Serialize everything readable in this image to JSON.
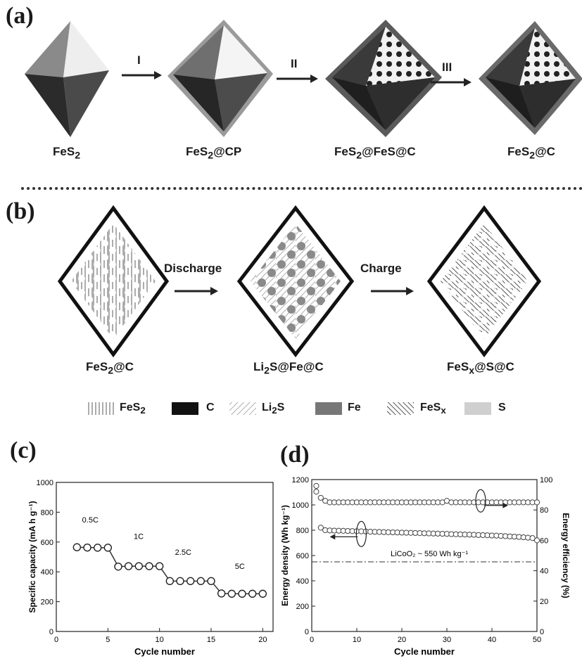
{
  "panel_a": {
    "letter": "(a)",
    "steps": [
      {
        "label": "FeS",
        "sub": "2",
        "suffix": ""
      },
      {
        "label": "FeS",
        "sub": "2",
        "suffix": "@CP"
      },
      {
        "label": "FeS",
        "sub": "2",
        "suffix": "@FeS@C"
      },
      {
        "label": "FeS",
        "sub": "2",
        "suffix": "@C"
      }
    ],
    "arrows": [
      "I",
      "II",
      "III"
    ]
  },
  "panel_b": {
    "letter": "(b)",
    "states": [
      {
        "label": "FeS",
        "sub": "2",
        "suffix": "@C"
      },
      {
        "label": "Li",
        "sub": "2",
        "suffix": "S@Fe@C"
      },
      {
        "label": "FeS",
        "sub": "x",
        "suffix": "@S@C"
      }
    ],
    "arrows": [
      "Discharge",
      "Charge"
    ],
    "legend": [
      {
        "label": "FeS",
        "sub": "2",
        "pattern": "vertical"
      },
      {
        "label": "C",
        "sub": "",
        "pattern": "black"
      },
      {
        "label": "Li",
        "sub": "2",
        "suffix": "S",
        "pattern": "diagonal-light"
      },
      {
        "label": "Fe",
        "sub": "",
        "pattern": "gray"
      },
      {
        "label": "FeS",
        "sub": "x",
        "pattern": "diagonal-dark"
      },
      {
        "label": "S",
        "sub": "",
        "pattern": "light-gray"
      }
    ]
  },
  "chart_data": [
    {
      "panel": "(c)",
      "type": "line",
      "xlabel": "Cycle number",
      "ylabel": "Specific capacity (mA h g⁻¹)",
      "xlim": [
        0,
        21
      ],
      "ylim": [
        0,
        1000
      ],
      "xticks": [
        0,
        5,
        10,
        15,
        20
      ],
      "yticks": [
        0,
        200,
        400,
        600,
        800,
        1000
      ],
      "x": [
        2,
        3,
        4,
        5,
        6,
        7,
        8,
        9,
        10,
        11,
        12,
        13,
        14,
        15,
        16,
        17,
        18,
        19,
        20
      ],
      "series": [
        {
          "values": [
            565,
            563,
            562,
            562,
            435,
            438,
            438,
            438,
            438,
            338,
            338,
            338,
            338,
            338,
            255,
            253,
            253,
            253,
            253
          ]
        }
      ],
      "annotations": [
        "0.5C",
        "1C",
        "2.5C",
        "5C"
      ]
    },
    {
      "panel": "(d)",
      "type": "line",
      "xlabel": "Cycle number",
      "ylabel": "Energy density (Wh kg⁻¹)",
      "ylabel_right": "Energy efficiency (%)",
      "xlim": [
        0,
        50
      ],
      "ylim": [
        0,
        1200
      ],
      "ylim_right": [
        0,
        100
      ],
      "xticks": [
        0,
        10,
        20,
        30,
        40,
        50
      ],
      "yticks": [
        0,
        200,
        400,
        600,
        800,
        1000,
        1200
      ],
      "yticks_right": [
        0,
        20,
        40,
        60,
        80,
        100
      ],
      "x": [
        1,
        2,
        3,
        4,
        5,
        6,
        7,
        8,
        9,
        10,
        11,
        12,
        13,
        14,
        15,
        16,
        17,
        18,
        19,
        20,
        21,
        22,
        23,
        24,
        25,
        26,
        27,
        28,
        29,
        30,
        31,
        32,
        33,
        34,
        35,
        36,
        37,
        38,
        39,
        40,
        41,
        42,
        43,
        44,
        45,
        46,
        47,
        48,
        49,
        50
      ],
      "series": [
        {
          "axis": "left",
          "values": [
            1150,
            820,
            800,
            798,
            797,
            796,
            795,
            794,
            793,
            792,
            791,
            790,
            788,
            787,
            786,
            785,
            784,
            783,
            782,
            781,
            780,
            779,
            778,
            777,
            776,
            775,
            774,
            773,
            772,
            771,
            769,
            768,
            767,
            766,
            765,
            764,
            762,
            761,
            760,
            758,
            757,
            755,
            753,
            751,
            749,
            747,
            744,
            741,
            738,
            720
          ]
        },
        {
          "axis": "right",
          "values": [
            92,
            88,
            86,
            85,
            85,
            85,
            85,
            85,
            85,
            85,
            85,
            85,
            85,
            85,
            85,
            85,
            85,
            85,
            85,
            85,
            85,
            85,
            85,
            85,
            85,
            85,
            85,
            85,
            85,
            86,
            85,
            85,
            85,
            85,
            85,
            85,
            85,
            85,
            85,
            85,
            85,
            85,
            85,
            85,
            85,
            85,
            85,
            85,
            85,
            85
          ]
        }
      ],
      "reference_line": {
        "value": 550,
        "label": "LiCoO₂ ~ 550 Wh kg⁻¹"
      }
    }
  ],
  "panel_c": {
    "letter": "(c)"
  },
  "panel_d": {
    "letter": "(d)"
  }
}
